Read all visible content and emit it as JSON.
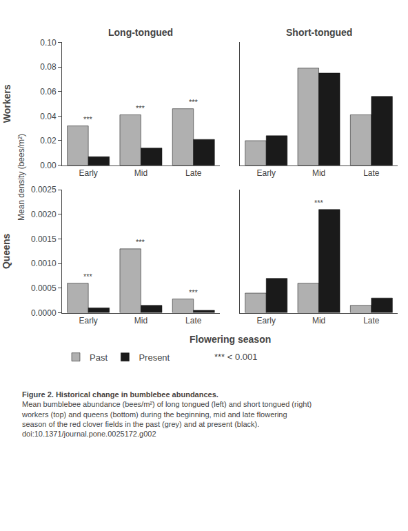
{
  "chart_data": [
    {
      "type": "bar",
      "title": "Long-tongued",
      "categories": [
        "Early",
        "Mid",
        "Late"
      ],
      "series": [
        {
          "name": "Past",
          "color": "#b0b0b0",
          "values": [
            0.032,
            0.041,
            0.046
          ]
        },
        {
          "name": "Present",
          "color": "#1a1a1a",
          "values": [
            0.007,
            0.014,
            0.021
          ]
        }
      ],
      "ylim": [
        0,
        0.1
      ],
      "yticks": [
        {
          "value": 0,
          "label": "0.00"
        },
        0.02,
        0.04,
        0.06,
        0.08,
        {
          "value": 0.1,
          "label": "0.10"
        }
      ],
      "annotations": [
        "***",
        "***",
        "***"
      ],
      "grid": false,
      "legend": "bottom"
    },
    {
      "type": "bar",
      "title": "Short-tongued",
      "categories": [
        "Early",
        "Mid",
        "Late"
      ],
      "series": [
        {
          "name": "Past",
          "color": "#b0b0b0",
          "values": [
            0.02,
            0.079,
            0.041
          ]
        },
        {
          "name": "Present",
          "color": "#1a1a1a",
          "values": [
            0.024,
            0.075,
            0.056
          ]
        }
      ],
      "ylim": [
        0,
        0.1
      ],
      "yticks": [
        {
          "value": 0,
          "label": "0.00"
        },
        0.02,
        0.04,
        0.06,
        0.08,
        {
          "value": 0.1,
          "label": "0.10"
        }
      ],
      "grid": false,
      "tick_labels": "x"
    },
    {
      "type": "bar",
      "categories": [
        "Early",
        "Mid",
        "Late"
      ],
      "series": [
        {
          "name": "Past",
          "color": "#b0b0b0",
          "values": [
            0.0006,
            0.0013,
            0.00028
          ]
        },
        {
          "name": "Present",
          "color": "#1a1a1a",
          "values": [
            0.0001,
            0.00015,
            5e-05
          ]
        }
      ],
      "ylim": [
        0,
        0.0025
      ],
      "yticks": [
        {
          "value": 0,
          "label": "0.0000"
        },
        0.0005,
        {
          "value": 0.001,
          "label": "0.0010"
        },
        {
          "value": 0.0015,
          "label": "0.0015"
        },
        {
          "value": 0.002,
          "label": "0.0020"
        },
        {
          "value": 0.0025,
          "label": "0.0025"
        }
      ],
      "annotations": [
        "***",
        "***",
        "***"
      ],
      "grid": false
    },
    {
      "type": "bar",
      "categories": [
        "Early",
        "Mid",
        "Late"
      ],
      "series": [
        {
          "name": "Past",
          "color": "#b0b0b0",
          "values": [
            0.0004,
            0.0006,
            0.00015
          ]
        },
        {
          "name": "Present",
          "color": "#1a1a1a",
          "values": [
            0.0007,
            0.0021,
            0.0003
          ]
        }
      ],
      "ylim": [
        0,
        0.0025
      ],
      "yticks": [
        {
          "value": 0,
          "label": "0.0000"
        },
        0.0005,
        {
          "value": 0.001,
          "label": "0.0010"
        },
        {
          "value": 0.0015,
          "label": "0.0015"
        },
        {
          "value": 0.002,
          "label": "0.0020"
        },
        {
          "value": 0.0025,
          "label": "0.0025"
        }
      ],
      "annotations": [
        null,
        "***",
        null
      ],
      "grid": false,
      "tick_labels": "x"
    }
  ],
  "ylabel": "Mean density (bees/m²)",
  "xlabel": "Flowering season",
  "row_labels": [
    "Workers",
    "Queens"
  ],
  "annotations": [
    "*** < 0.001"
  ],
  "caption": [
    "Figure 2. Historical change in bumblebee abundances.",
    "Mean bumblebee abundance (bees/m²) of long tongued (left) and short tongued (right) workers (top) and queens (bottom) during the beginning, mid and late flowering season of the red clover fields in the past (grey) and at present (black).",
    "doi:10.1371/journal.pone.0025172.g002"
  ]
}
